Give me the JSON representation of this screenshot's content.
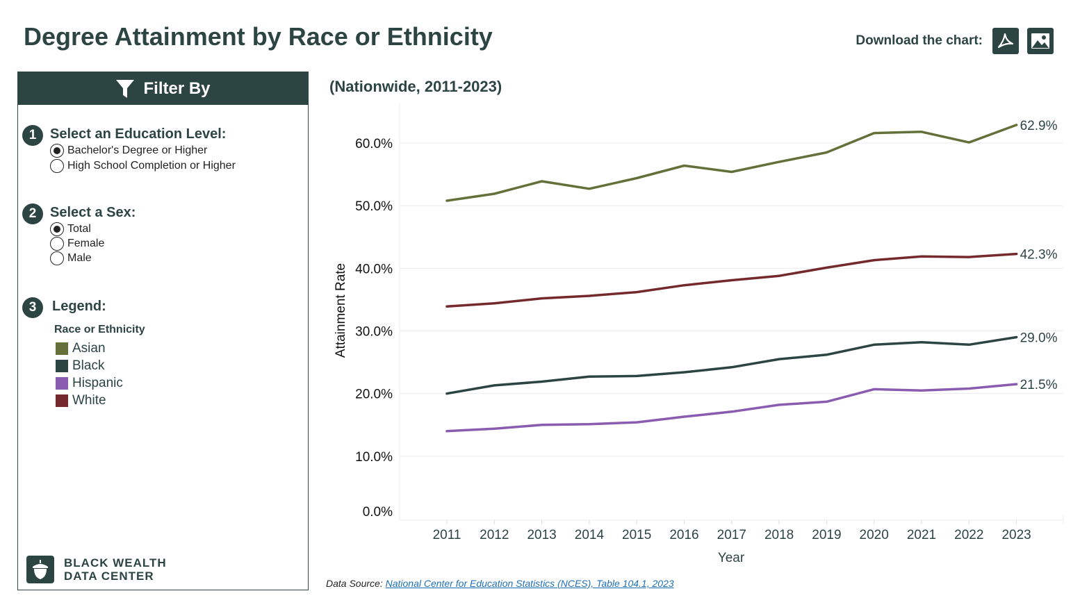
{
  "page": {
    "title": "Degree Attainment by Race or Ethnicity",
    "download_label": "Download the chart:",
    "download_pdf_icon": "pdf-icon",
    "download_image_icon": "image-icon"
  },
  "filter": {
    "header": "Filter By",
    "header_icon": "filter-icon",
    "step1": {
      "number": "1",
      "title": "Select an Education Level:",
      "options": [
        {
          "label": "Bachelor's Degree or Higher",
          "selected": true
        },
        {
          "label": "High School Completion or Higher",
          "selected": false
        }
      ]
    },
    "step2": {
      "number": "2",
      "title": "Select a Sex:",
      "options": [
        {
          "label": "Total",
          "selected": true
        },
        {
          "label": "Female",
          "selected": false
        },
        {
          "label": "Male",
          "selected": false
        }
      ]
    },
    "step3": {
      "number": "3",
      "title": "Legend:",
      "subtitle": "Race or Ethnicity",
      "items": [
        {
          "label": "Asian",
          "color": "#64703a"
        },
        {
          "label": "Black",
          "color": "#2c4442"
        },
        {
          "label": "Hispanic",
          "color": "#8a5cb0"
        },
        {
          "label": "White",
          "color": "#74292c"
        }
      ]
    }
  },
  "brand": {
    "name": "BLACK WEALTH\nDATA CENTER",
    "icon": "acorn-icon"
  },
  "chart_subtitle": "(Nationwide, 2011-2023)",
  "source": {
    "prefix": "Data Source:",
    "link_text": "National Center for Education Statistics (NCES), Table 104.1, 2023"
  },
  "chart_data": {
    "type": "line",
    "xlabel": "Year",
    "ylabel": "Attainment Rate",
    "x": [
      2011,
      2012,
      2013,
      2014,
      2015,
      2016,
      2017,
      2018,
      2019,
      2020,
      2021,
      2022,
      2023
    ],
    "ylim": [
      0,
      65
    ],
    "yticks": [
      0,
      10,
      20,
      30,
      40,
      50,
      60
    ],
    "ytick_labels": [
      "0.0%",
      "10.0%",
      "20.0%",
      "30.0%",
      "40.0%",
      "50.0%",
      "60.0%"
    ],
    "grid": "horizontal",
    "series": [
      {
        "name": "Asian",
        "color": "#64703a",
        "values": [
          50.8,
          51.9,
          53.9,
          52.7,
          54.4,
          56.4,
          55.4,
          57.0,
          58.5,
          61.6,
          61.8,
          60.1,
          62.9
        ],
        "end_label": "62.9%"
      },
      {
        "name": "White",
        "color": "#74292c",
        "values": [
          33.9,
          34.4,
          35.2,
          35.6,
          36.2,
          37.3,
          38.1,
          38.8,
          40.1,
          41.3,
          41.9,
          41.8,
          42.3
        ],
        "end_label": "42.3%"
      },
      {
        "name": "Black",
        "color": "#2c4442",
        "values": [
          20.0,
          21.3,
          21.9,
          22.7,
          22.8,
          23.4,
          24.2,
          25.5,
          26.2,
          27.8,
          28.2,
          27.8,
          29.0
        ],
        "end_label": "29.0%"
      },
      {
        "name": "Hispanic",
        "color": "#8a5cb0",
        "values": [
          14.0,
          14.4,
          15.0,
          15.1,
          15.4,
          16.3,
          17.1,
          18.2,
          18.7,
          20.7,
          20.5,
          20.8,
          21.5
        ],
        "end_label": "21.5%"
      }
    ]
  }
}
